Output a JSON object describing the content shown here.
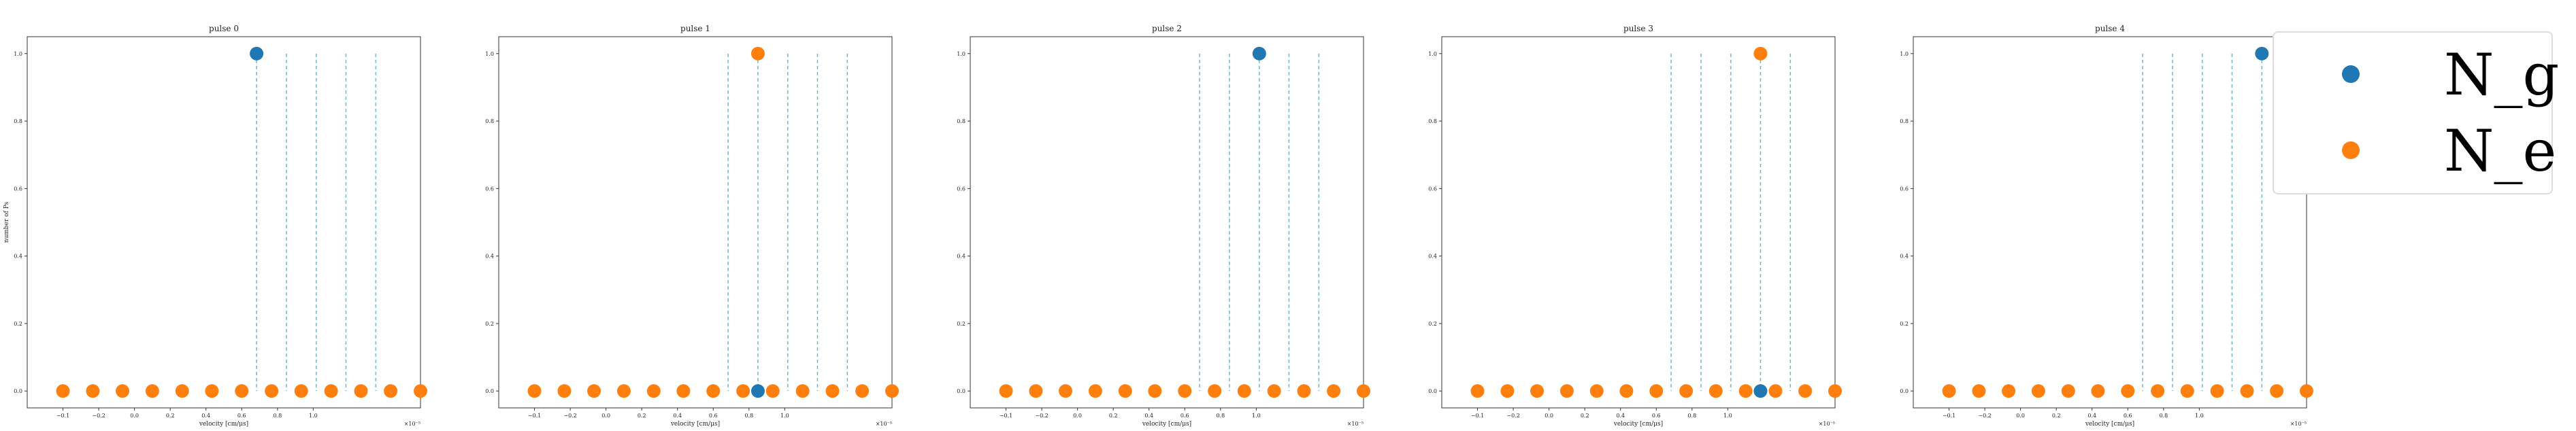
{
  "colors": {
    "g": "#1f77b4",
    "e": "#ff7f0e",
    "vline": "#6fb8c4"
  },
  "legend": {
    "items": [
      {
        "label": "N_g",
        "color": "#1f77b4"
      },
      {
        "label": "N_e",
        "color": "#ff7f0e"
      }
    ]
  },
  "chart_data": [
    {
      "type": "scatter",
      "title": "pulse 0",
      "xlabel": "velocity  [cm/μs]",
      "ylabel": "number of Ps",
      "x_multiplier": "×10⁻⁵",
      "xlim": [
        -1.2,
        1.0
      ],
      "ylim": [
        -0.05,
        1.05
      ],
      "xticks": [
        "−0.1",
        "−0.2",
        "0.0",
        "0.2",
        "0.4",
        "0.6",
        "0.8",
        "1.0"
      ],
      "yticks": [
        "0.0",
        "0.2",
        "0.4",
        "0.6",
        "0.8",
        "1.0"
      ],
      "vlines": [
        0.083,
        0.25,
        0.417,
        0.583,
        0.75
      ],
      "series": [
        {
          "name": "N_g",
          "x": [
            0.083
          ],
          "y": [
            1.0
          ]
        },
        {
          "name": "N_e",
          "x": [
            -1.0,
            -0.833,
            -0.667,
            -0.5,
            -0.333,
            -0.167,
            0.0,
            0.167,
            0.333,
            0.5,
            0.667,
            0.833,
            1.0
          ],
          "y": [
            0,
            0,
            0,
            0,
            0,
            0,
            0,
            0,
            0,
            0,
            0,
            0,
            0
          ]
        }
      ]
    },
    {
      "type": "scatter",
      "title": "pulse 1",
      "xlabel": "velocity  [cm/μs]",
      "ylabel": "",
      "x_multiplier": "×10⁻⁵",
      "xlim": [
        -1.2,
        1.0
      ],
      "ylim": [
        -0.05,
        1.05
      ],
      "xticks": [
        "−0.1",
        "−0.2",
        "0.0",
        "0.2",
        "0.4",
        "0.6",
        "0.8",
        "1.0"
      ],
      "yticks": [
        "0.0",
        "0.2",
        "0.4",
        "0.6",
        "0.8",
        "1.0"
      ],
      "vlines": [
        0.083,
        0.25,
        0.417,
        0.583,
        0.75
      ],
      "series": [
        {
          "name": "N_g",
          "x": [
            0.25
          ],
          "y": [
            0.0
          ]
        },
        {
          "name": "N_e",
          "x": [
            -1.0,
            -0.833,
            -0.667,
            -0.5,
            -0.333,
            -0.167,
            0.0,
            0.167,
            0.333,
            0.5,
            0.667,
            0.833,
            1.0,
            0.25
          ],
          "y": [
            0,
            0,
            0,
            0,
            0,
            0,
            0,
            0,
            0,
            0,
            0,
            0,
            0,
            1.0
          ]
        }
      ]
    },
    {
      "type": "scatter",
      "title": "pulse 2",
      "xlabel": "velocity  [cm/μs]",
      "ylabel": "",
      "x_multiplier": "×10⁻⁵",
      "xlim": [
        -1.2,
        1.0
      ],
      "ylim": [
        -0.05,
        1.05
      ],
      "xticks": [
        "−0.1",
        "−0.2",
        "0.0",
        "0.2",
        "0.4",
        "0.6",
        "0.8",
        "1.0"
      ],
      "yticks": [
        "0.0",
        "0.2",
        "0.4",
        "0.6",
        "0.8",
        "1.0"
      ],
      "vlines": [
        0.083,
        0.25,
        0.417,
        0.583,
        0.75
      ],
      "series": [
        {
          "name": "N_g",
          "x": [
            0.417
          ],
          "y": [
            1.0
          ]
        },
        {
          "name": "N_e",
          "x": [
            -1.0,
            -0.833,
            -0.667,
            -0.5,
            -0.333,
            -0.167,
            0.0,
            0.167,
            0.333,
            0.5,
            0.667,
            0.833,
            1.0
          ],
          "y": [
            0,
            0,
            0,
            0,
            0,
            0,
            0,
            0,
            0,
            0,
            0,
            0,
            0
          ]
        }
      ]
    },
    {
      "type": "scatter",
      "title": "pulse 3",
      "xlabel": "velocity  [cm/μs]",
      "ylabel": "",
      "x_multiplier": "×10⁻⁵",
      "xlim": [
        -1.2,
        1.0
      ],
      "ylim": [
        -0.05,
        1.05
      ],
      "xticks": [
        "−0.1",
        "−0.2",
        "0.0",
        "0.2",
        "0.4",
        "0.6",
        "0.8",
        "1.0"
      ],
      "yticks": [
        "0.0",
        "0.2",
        "0.4",
        "0.6",
        "0.8",
        "1.0"
      ],
      "vlines": [
        0.083,
        0.25,
        0.417,
        0.583,
        0.75
      ],
      "series": [
        {
          "name": "N_g",
          "x": [
            0.583
          ],
          "y": [
            0.0
          ]
        },
        {
          "name": "N_e",
          "x": [
            -1.0,
            -0.833,
            -0.667,
            -0.5,
            -0.333,
            -0.167,
            0.0,
            0.167,
            0.333,
            0.5,
            0.667,
            0.833,
            1.0,
            0.583
          ],
          "y": [
            0,
            0,
            0,
            0,
            0,
            0,
            0,
            0,
            0,
            0,
            0,
            0,
            0,
            1.0
          ]
        }
      ]
    },
    {
      "type": "scatter",
      "title": "pulse 4",
      "xlabel": "velocity  [cm/μs]",
      "ylabel": "",
      "x_multiplier": "×10⁻⁵",
      "xlim": [
        -1.2,
        1.0
      ],
      "ylim": [
        -0.05,
        1.05
      ],
      "xticks": [
        "−0.1",
        "−0.2",
        "0.0",
        "0.2",
        "0.4",
        "0.6",
        "0.8",
        "1.0"
      ],
      "yticks": [
        "0.0",
        "0.2",
        "0.4",
        "0.6",
        "0.8",
        "1.0"
      ],
      "vlines": [
        0.083,
        0.25,
        0.417,
        0.583,
        0.75
      ],
      "series": [
        {
          "name": "N_g",
          "x": [
            0.75
          ],
          "y": [
            1.0
          ]
        },
        {
          "name": "N_e",
          "x": [
            -1.0,
            -0.833,
            -0.667,
            -0.5,
            -0.333,
            -0.167,
            0.0,
            0.167,
            0.333,
            0.5,
            0.667,
            0.833,
            1.0
          ],
          "y": [
            0,
            0,
            0,
            0,
            0,
            0,
            0,
            0,
            0,
            0,
            0,
            0,
            0
          ]
        }
      ]
    }
  ]
}
